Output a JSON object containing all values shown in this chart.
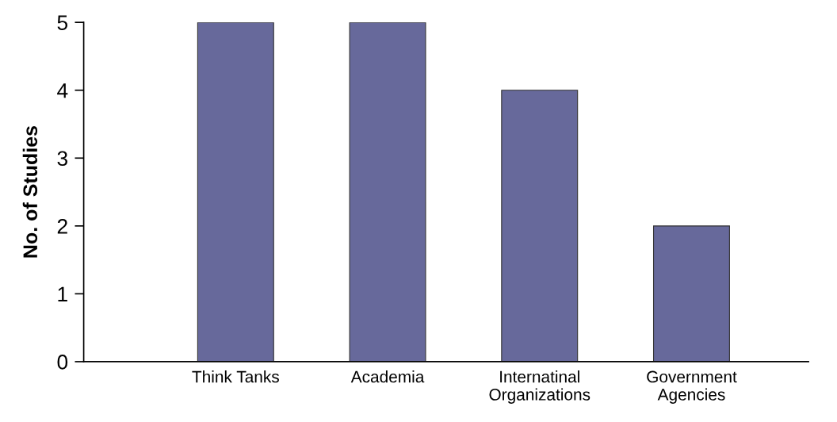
{
  "chart_data": {
    "type": "bar",
    "ylabel": "No. of Studies",
    "categories": [
      "Think Tanks",
      "Academia",
      "Internatinal\nOrganizations",
      "Government\nAgencies"
    ],
    "values": [
      5,
      5,
      4,
      2
    ],
    "color": "#67699b",
    "ylim": [
      0,
      5
    ],
    "yticks": [
      0,
      1,
      2,
      3,
      4,
      5
    ],
    "grid": false,
    "legend": false
  }
}
